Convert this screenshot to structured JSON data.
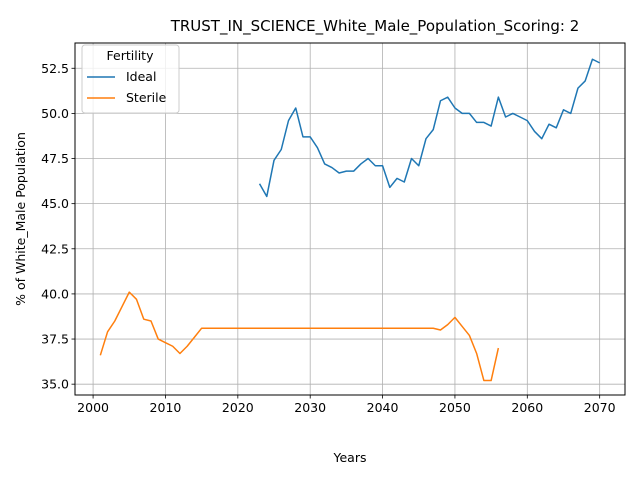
{
  "chart_data": {
    "type": "line",
    "title": "TRUST_IN_SCIENCE_White_Male_Population_Scoring: 2",
    "xlabel": "Years",
    "ylabel": "% of White_Male Population",
    "xlim": [
      1997.5,
      2073.5
    ],
    "ylim": [
      34.4,
      53.9
    ],
    "xticks": [
      2000,
      2010,
      2020,
      2030,
      2040,
      2050,
      2060,
      2070
    ],
    "yticks": [
      35.0,
      37.5,
      40.0,
      42.5,
      45.0,
      47.5,
      50.0,
      52.5
    ],
    "grid": true,
    "legend": {
      "title": "Fertility",
      "placement": "top-left"
    },
    "colors": {
      "Ideal": "#1f77b4",
      "Sterile": "#ff7f0e"
    },
    "series": [
      {
        "name": "Ideal",
        "x": [
          2023,
          2024,
          2025,
          2026,
          2027,
          2028,
          2029,
          2030,
          2031,
          2032,
          2033,
          2034,
          2035,
          2036,
          2037,
          2038,
          2039,
          2040,
          2041,
          2042,
          2043,
          2044,
          2045,
          2046,
          2047,
          2048,
          2049,
          2050,
          2051,
          2052,
          2053,
          2054,
          2055,
          2056,
          2057,
          2058,
          2059,
          2060,
          2061,
          2062,
          2063,
          2064,
          2065,
          2066,
          2067,
          2068,
          2069,
          2070
        ],
        "y": [
          46.1,
          45.4,
          47.4,
          48.0,
          49.6,
          50.3,
          48.7,
          48.7,
          48.1,
          47.2,
          47.0,
          46.7,
          46.8,
          46.8,
          47.2,
          47.5,
          47.1,
          47.1,
          45.9,
          46.4,
          46.2,
          47.5,
          47.1,
          48.6,
          49.1,
          50.7,
          50.9,
          50.3,
          50.0,
          50.0,
          49.5,
          49.5,
          49.3,
          50.9,
          49.8,
          50.0,
          49.8,
          49.6,
          49.0,
          48.6,
          49.4,
          49.2,
          50.2,
          50.0,
          51.4,
          51.8,
          53.0,
          52.8
        ]
      },
      {
        "name": "Sterile",
        "x": [
          2001,
          2002,
          2003,
          2004,
          2005,
          2006,
          2007,
          2008,
          2009,
          2010,
          2011,
          2012,
          2013,
          2014,
          2015,
          2016,
          2017,
          2018,
          2019,
          2020,
          2021,
          2022,
          2023,
          2024,
          2025,
          2026,
          2027,
          2028,
          2029,
          2030,
          2031,
          2032,
          2033,
          2034,
          2035,
          2036,
          2037,
          2038,
          2039,
          2040,
          2041,
          2042,
          2043,
          2044,
          2045,
          2046,
          2047,
          2048,
          2049,
          2050,
          2051,
          2052,
          2053,
          2054,
          2055,
          2056
        ],
        "y": [
          36.6,
          37.9,
          38.5,
          39.3,
          40.1,
          39.7,
          38.6,
          38.5,
          37.5,
          37.3,
          37.1,
          36.7,
          37.1,
          37.6,
          38.1,
          38.1,
          38.1,
          38.1,
          38.1,
          38.1,
          38.1,
          38.1,
          38.1,
          38.1,
          38.1,
          38.1,
          38.1,
          38.1,
          38.1,
          38.1,
          38.1,
          38.1,
          38.1,
          38.1,
          38.1,
          38.1,
          38.1,
          38.1,
          38.1,
          38.1,
          38.1,
          38.1,
          38.1,
          38.1,
          38.1,
          38.1,
          38.1,
          38.0,
          38.3,
          38.7,
          38.2,
          37.7,
          36.7,
          35.2,
          35.2,
          37.0
        ]
      }
    ]
  }
}
